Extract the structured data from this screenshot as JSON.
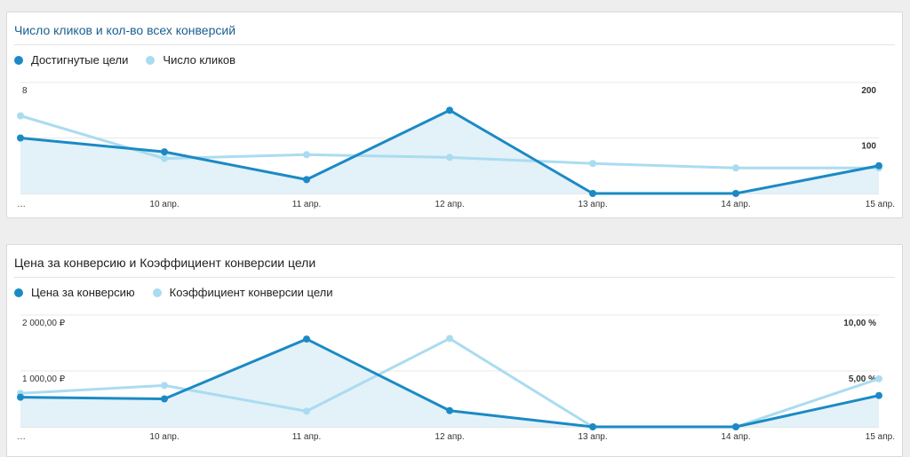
{
  "colors": {
    "dark": "#1b8ac4",
    "light": "#aadcf0",
    "area": "#e3f1f9",
    "grid": "#e8e8e8"
  },
  "chart_data": [
    {
      "type": "line",
      "title": "Число кликов и кол-во всех конверсий",
      "categories": [
        "…",
        "10 апр.",
        "11 апр.",
        "12 апр.",
        "13 апр.",
        "14 апр.",
        "15 апр."
      ],
      "series": [
        {
          "name": "Достигнутые цели",
          "axis": "left",
          "values": [
            4,
            3,
            1,
            6,
            0,
            0,
            2
          ]
        },
        {
          "name": "Число кликов",
          "axis": "right",
          "values": [
            140,
            63,
            70,
            65,
            54,
            46,
            46
          ]
        }
      ],
      "left_axis": {
        "ylim": [
          0,
          8
        ],
        "ticks": [
          "8",
          "4"
        ],
        "tick_values": [
          8,
          4
        ]
      },
      "right_axis": {
        "ylim": [
          0,
          200
        ],
        "ticks": [
          "200",
          "100"
        ],
        "tick_values": [
          200,
          100
        ]
      },
      "legend": "top-left",
      "grid": true
    },
    {
      "type": "line",
      "title": "Цена за конверсию и Коэффициент конверсии цели",
      "categories": [
        "…",
        "10 апр.",
        "11 апр.",
        "12 апр.",
        "13 апр.",
        "14 апр.",
        "15 апр."
      ],
      "series": [
        {
          "name": "Цена за конверсию",
          "axis": "left",
          "values": [
            530,
            500,
            1570,
            290,
            0,
            0,
            560
          ]
        },
        {
          "name": "Коэффициент конверсии цели",
          "axis": "right",
          "values": [
            3.0,
            3.7,
            1.4,
            7.9,
            0,
            0,
            4.3
          ]
        }
      ],
      "left_axis": {
        "ylim": [
          0,
          2000
        ],
        "ticks": [
          "2 000,00 ₽",
          "1 000,00 ₽"
        ],
        "tick_values": [
          2000,
          1000
        ]
      },
      "right_axis": {
        "ylim": [
          0,
          10
        ],
        "ticks": [
          "10,00 %",
          "5,00 %"
        ],
        "tick_values": [
          10,
          5
        ]
      },
      "legend": "top-left",
      "grid": true
    }
  ]
}
